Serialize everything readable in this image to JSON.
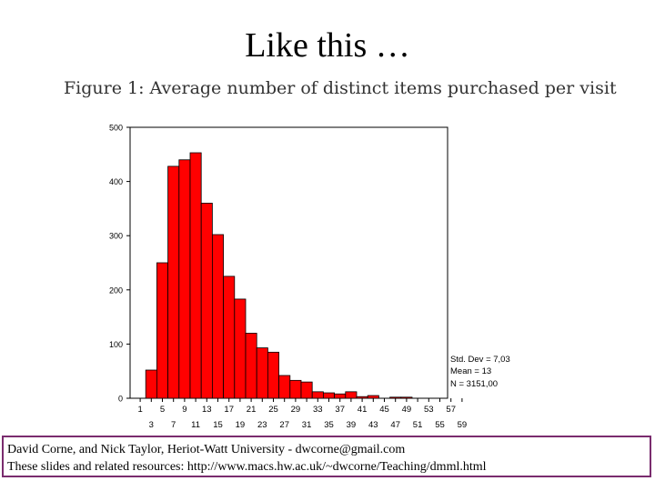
{
  "slide": {
    "title": "Like this …"
  },
  "figure": {
    "caption": "Figure 1:  Average number of distinct items purchased per visit"
  },
  "chart_data": {
    "type": "bar",
    "title": "",
    "xlabel": "",
    "ylabel": "",
    "ylim": [
      0,
      500
    ],
    "yticks": [
      0,
      100,
      200,
      300,
      400,
      500
    ],
    "x_tick_labels_top": [
      "1",
      "5",
      "9",
      "13",
      "17",
      "21",
      "25",
      "29",
      "33",
      "37",
      "41",
      "45",
      "49",
      "53",
      "57"
    ],
    "x_tick_labels_bottom": [
      "3",
      "7",
      "11",
      "15",
      "19",
      "23",
      "27",
      "31",
      "35",
      "39",
      "43",
      "47",
      "51",
      "55",
      "59"
    ],
    "categories": [
      1,
      3,
      5,
      7,
      9,
      11,
      13,
      15,
      17,
      19,
      21,
      23,
      25,
      27,
      29,
      31,
      33,
      35,
      37,
      39,
      41,
      43,
      45,
      47,
      49,
      51,
      53,
      55,
      57,
      59
    ],
    "values": [
      0,
      52,
      250,
      428,
      440,
      453,
      360,
      302,
      225,
      183,
      120,
      93,
      85,
      42,
      33,
      30,
      12,
      10,
      8,
      12,
      3,
      5,
      0,
      2,
      2,
      0,
      0,
      0,
      0,
      0
    ],
    "bar_color": "#ff0000",
    "grid": false,
    "stats": [
      "Std. Dev = 7,03",
      "Mean = 13",
      "N = 3151,00"
    ]
  },
  "footer": {
    "line1": "David Corne, and Nick Taylor,  Heriot-Watt University  -  dwcorne@gmail.com",
    "line2": "These slides and related resources:   http://www.macs.hw.ac.uk/~dwcorne/Teaching/dmml.html"
  }
}
